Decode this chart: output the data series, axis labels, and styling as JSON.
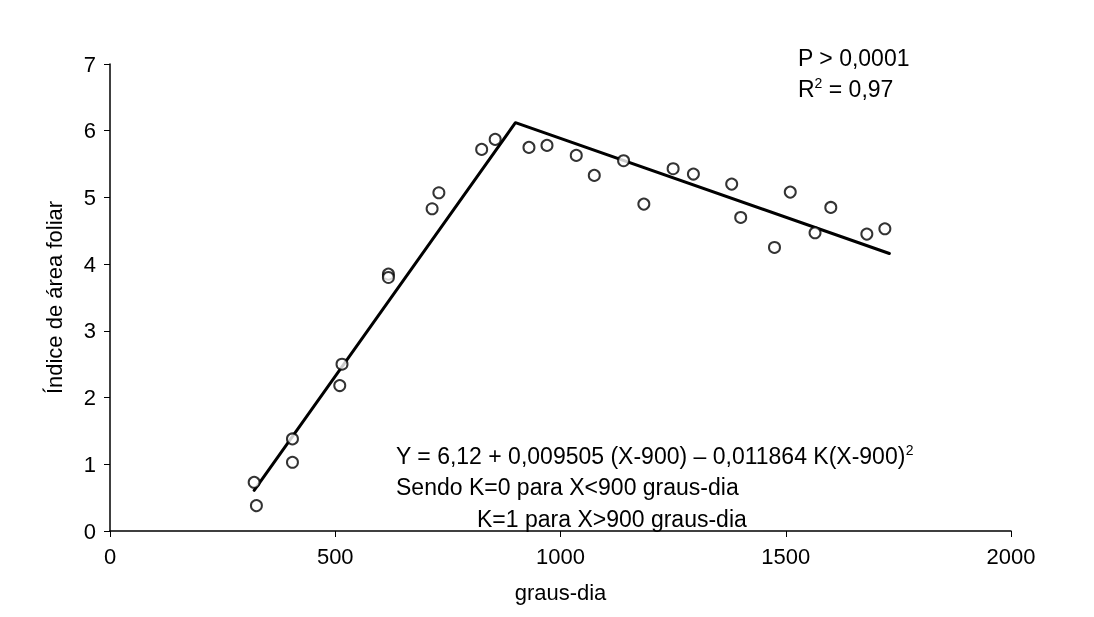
{
  "chart_data": {
    "type": "scatter",
    "xlabel": "graus-dia",
    "ylabel": "Índice de área foliar",
    "xlim": [
      0,
      2000
    ],
    "xticks": [
      0,
      500,
      1000,
      1500,
      2000
    ],
    "ylim": [
      0,
      7
    ],
    "yticks": [
      0,
      1,
      2,
      3,
      4,
      5,
      6,
      7
    ],
    "grid": false,
    "marker": "circle",
    "annotations": [
      "P > 0,0001",
      "R$^{2}$ = 0,97",
      "Y = 6,12 + 0,009505 (X-900) – 0,011864 K(X-900)$^{2}$",
      "Sendo K=0 para X<900 graus-dia",
      "K=1 para X>900 graus-dia"
    ],
    "series": [
      {
        "color": "#000000",
        "x": [
          320,
          325,
          405,
          405,
          510,
          515,
          618,
          618,
          715,
          730,
          825,
          855,
          930,
          970,
          1035,
          1075,
          1140,
          1185,
          1250,
          1295,
          1380,
          1400,
          1475,
          1510,
          1565,
          1600,
          1680,
          1720
        ],
        "values": [
          0.73,
          0.38,
          1.38,
          1.03,
          2.18,
          2.5,
          3.85,
          3.8,
          4.83,
          5.07,
          5.72,
          5.87,
          5.75,
          5.78,
          5.63,
          5.33,
          5.55,
          4.9,
          5.43,
          5.35,
          5.2,
          4.7,
          4.25,
          5.08,
          4.47,
          4.85,
          4.45,
          4.53
        ]
      },
      {
        "type": "line",
        "color": "#000000",
        "marker": "none",
        "line_style": "solid",
        "x": [
          320,
          900,
          1730
        ],
        "values": [
          0.61,
          6.12,
          4.16
        ]
      }
    ]
  }
}
